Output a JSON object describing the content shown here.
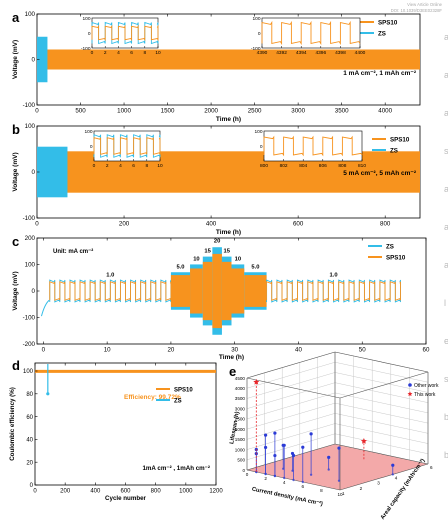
{
  "colors": {
    "orange": "#f7931e",
    "cyan": "#33bde8",
    "red": "#e8262b",
    "blue": "#2b3bd6",
    "pink": "#f2a0a0"
  },
  "watermark": {
    "line1": "View Article Online",
    "line2": "DOI: 10.1039/D3EE02328F"
  },
  "right_strip": [
    "a",
    "a",
    "a",
    "s",
    "a",
    "a",
    "a",
    "l",
    "e",
    "s",
    "b",
    "b"
  ],
  "chart_data": [
    {
      "panel": "a",
      "type": "line",
      "ylabel": "Voltage (mV)",
      "xlabel": "Time (h)",
      "xlim": [
        0,
        4400
      ],
      "ylim": [
        -100,
        100
      ],
      "xticks": [
        0,
        500,
        1000,
        1500,
        2000,
        2500,
        3000,
        3500,
        4000
      ],
      "yticks": [
        -100,
        0,
        100
      ],
      "condition": "1 mA cm⁻², 1 mAh cm⁻²",
      "series": [
        {
          "name": "SPS10",
          "color": "#f7931e",
          "x_range": [
            0,
            4400
          ],
          "voltage_band_mV": [
            -22,
            22
          ]
        },
        {
          "name": "ZS",
          "color": "#33bde8",
          "x_range": [
            0,
            120
          ],
          "voltage_band_mV": [
            -50,
            50
          ]
        }
      ],
      "insets": [
        {
          "xticks": [
            0,
            2,
            4,
            6,
            8,
            10
          ],
          "yticks": [
            -100,
            0,
            100
          ],
          "xlim": [
            0,
            10
          ],
          "ylim": [
            -100,
            100
          ]
        },
        {
          "xticks": [
            4390,
            4392,
            4394,
            4396,
            4398,
            4400
          ],
          "yticks": [
            -100,
            0,
            100
          ],
          "xlim": [
            4390,
            4400
          ],
          "ylim": [
            -100,
            100
          ]
        }
      ]
    },
    {
      "panel": "b",
      "type": "line",
      "ylabel": "Voltage (mV)",
      "xlabel": "Time (h)",
      "xlim": [
        0,
        880
      ],
      "ylim": [
        -100,
        100
      ],
      "xticks": [
        0,
        200,
        400,
        600,
        800
      ],
      "yticks": [
        -100,
        0,
        100
      ],
      "condition": "5 mA cm⁻², 5 mAh cm⁻²",
      "series": [
        {
          "name": "SPS10",
          "color": "#f7931e",
          "x_range": [
            0,
            880
          ],
          "voltage_band_mV": [
            -45,
            45
          ]
        },
        {
          "name": "ZS",
          "color": "#33bde8",
          "x_range": [
            0,
            70
          ],
          "voltage_band_mV": [
            -55,
            55
          ]
        }
      ],
      "insets": [
        {
          "xticks": [
            0,
            2,
            4,
            6,
            8,
            10
          ],
          "yticks": [
            0,
            100
          ],
          "xlim": [
            0,
            10
          ],
          "ylim": [
            -100,
            100
          ]
        },
        {
          "xticks": [
            800,
            802,
            804,
            806,
            808,
            810
          ],
          "yticks": [
            0,
            100
          ],
          "xlim": [
            800,
            810
          ],
          "ylim": [
            -100,
            100
          ]
        }
      ]
    },
    {
      "panel": "c",
      "type": "line",
      "ylabel": "Voltage (mV)",
      "xlabel": "Time (h)",
      "unit_label": "Unit: mA cm⁻²",
      "xlim": [
        -1,
        60
      ],
      "ylim": [
        -200,
        200
      ],
      "xticks": [
        0,
        10,
        20,
        30,
        40,
        50,
        60
      ],
      "yticks": [
        -200,
        -100,
        0,
        100,
        200
      ],
      "series": [
        {
          "name": "ZS",
          "color": "#33bde8"
        },
        {
          "name": "SPS10",
          "color": "#f7931e"
        }
      ],
      "rate_segments": [
        {
          "rate": "1.0",
          "x": [
            1,
            20
          ],
          "amp_mV": 35
        },
        {
          "rate": "5.0",
          "x": [
            20,
            23
          ],
          "amp_mV": 60
        },
        {
          "rate": "10",
          "x": [
            23,
            25
          ],
          "amp_mV": 85
        },
        {
          "rate": "15",
          "x": [
            25,
            26.5
          ],
          "amp_mV": 110
        },
        {
          "rate": "20",
          "x": [
            26.5,
            28
          ],
          "amp_mV": 140
        },
        {
          "rate": "15",
          "x": [
            28,
            29.5
          ],
          "amp_mV": 110
        },
        {
          "rate": "10",
          "x": [
            29.5,
            31.5
          ],
          "amp_mV": 85
        },
        {
          "rate": "5.0",
          "x": [
            31.5,
            35
          ],
          "amp_mV": 60
        },
        {
          "rate": "1.0",
          "x": [
            35,
            56
          ],
          "amp_mV": 35
        }
      ]
    },
    {
      "panel": "d",
      "type": "line",
      "ylabel": "Coulombic efficiency (%)",
      "xlabel": "Cycle number",
      "xlim": [
        0,
        1200
      ],
      "ylim": [
        0,
        100
      ],
      "xticks": [
        0,
        200,
        400,
        600,
        800,
        1000,
        1200
      ],
      "yticks": [
        0,
        20,
        40,
        60,
        80,
        100
      ],
      "annotation": "Efficiency: 99.72%",
      "condition": "1mA cm⁻² , 1mAh cm⁻²",
      "series": [
        {
          "name": "SPS10",
          "color": "#f7931e",
          "value": 99.72,
          "x_range": [
            0,
            1200
          ]
        },
        {
          "name": "ZS",
          "color": "#33bde8",
          "x_range": [
            0,
            90
          ],
          "min_value": 80
        }
      ]
    },
    {
      "panel": "e",
      "type": "scatter",
      "zlabel": "Lifespan (h)",
      "xlabel": "Current density (mA cm⁻²)",
      "ylabel": "Areal capacity (mAh cm⁻²)",
      "zticks": [
        0,
        500,
        1000,
        1500,
        2000,
        2500,
        3000,
        3500,
        4000,
        4500
      ],
      "xticks": [
        0,
        2,
        4,
        6,
        8,
        10
      ],
      "yticks": [
        1,
        2,
        3,
        4,
        5,
        6
      ],
      "legend": [
        "Other work",
        "This work"
      ],
      "other_work": [
        {
          "current": 1,
          "capacity": 1,
          "lifespan": 1100
        },
        {
          "current": 1,
          "capacity": 1,
          "lifespan": 900
        },
        {
          "current": 2,
          "capacity": 1,
          "lifespan": 1300
        },
        {
          "current": 2,
          "capacity": 2,
          "lifespan": 1150
        },
        {
          "current": 2,
          "capacity": 1,
          "lifespan": 1900
        },
        {
          "current": 3,
          "capacity": 1,
          "lifespan": 2100
        },
        {
          "current": 3,
          "capacity": 1,
          "lifespan": 1000
        },
        {
          "current": 3,
          "capacity": 2,
          "lifespan": 850
        },
        {
          "current": 4,
          "capacity": 1,
          "lifespan": 1600
        },
        {
          "current": 5,
          "capacity": 1,
          "lifespan": 1200
        },
        {
          "current": 5,
          "capacity": 2,
          "lifespan": 2000
        },
        {
          "current": 6,
          "capacity": 1,
          "lifespan": 1700
        },
        {
          "current": 8,
          "capacity": 2,
          "lifespan": 1600
        },
        {
          "current": 10,
          "capacity": 4,
          "lifespan": 450
        },
        {
          "current": 5,
          "capacity": 3,
          "lifespan": 600
        }
      ],
      "this_work": [
        {
          "current": 1,
          "capacity": 1,
          "lifespan": 4400
        },
        {
          "current": 5,
          "capacity": 5,
          "lifespan": 880
        }
      ]
    }
  ]
}
